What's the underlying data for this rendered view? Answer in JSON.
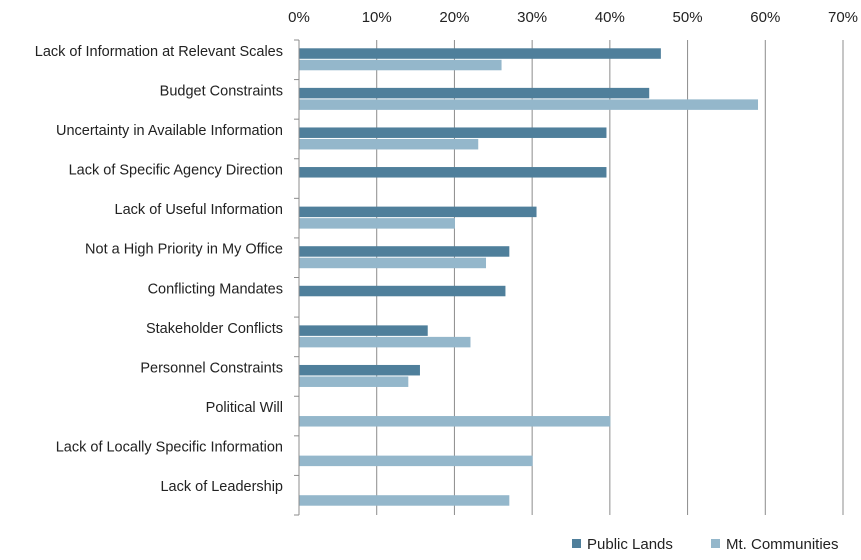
{
  "chart_data": {
    "type": "bar",
    "orientation": "horizontal",
    "categories": [
      "Lack of Information at Relevant Scales",
      "Budget Constraints",
      "Uncertainty in Available Information",
      "Lack of Specific Agency Direction",
      "Lack of Useful Information",
      "Not a High Priority in My Office",
      "Conflicting Mandates",
      "Stakeholder Conflicts",
      "Personnel Constraints",
      "Political Will",
      "Lack of Locally Specific Information",
      "Lack of Leadership"
    ],
    "series": [
      {
        "name": "Public Lands",
        "color": "#4f7f9b",
        "values": [
          46.5,
          45,
          39.5,
          39.5,
          30.5,
          27,
          26.5,
          16.5,
          15.5,
          null,
          null,
          null
        ]
      },
      {
        "name": "Mt. Communities",
        "color": "#94b7cb",
        "values": [
          26,
          59,
          23,
          null,
          20,
          24,
          null,
          22,
          14,
          40,
          30,
          27
        ]
      }
    ],
    "xlim": [
      0,
      70
    ],
    "ticks": [
      "0%",
      "10%",
      "20%",
      "30%",
      "40%",
      "50%",
      "60%",
      "70%"
    ],
    "tick_values": [
      0,
      10,
      20,
      30,
      40,
      50,
      60,
      70
    ],
    "xaxis_position": "top",
    "grid": true,
    "legend_position": "bottom-right"
  }
}
